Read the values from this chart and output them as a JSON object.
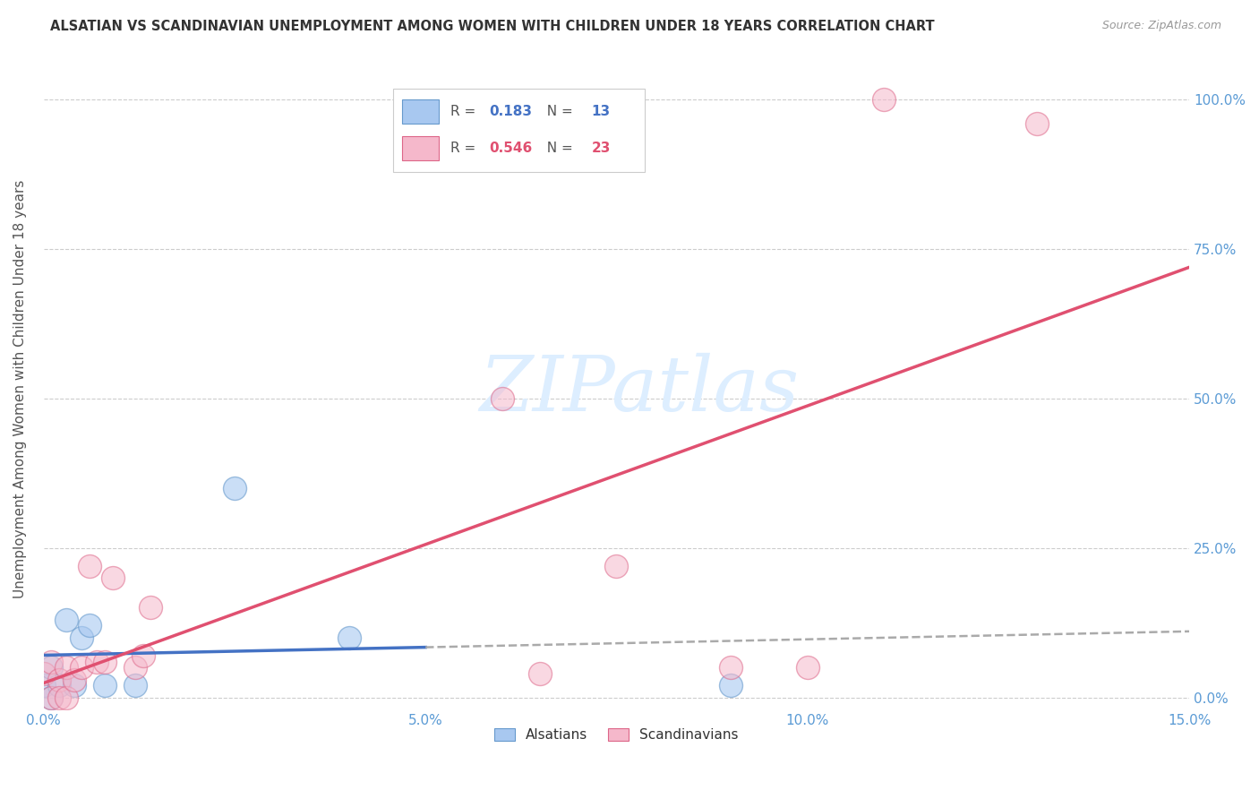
{
  "title": "ALSATIAN VS SCANDINAVIAN UNEMPLOYMENT AMONG WOMEN WITH CHILDREN UNDER 18 YEARS CORRELATION CHART",
  "source": "Source: ZipAtlas.com",
  "ylabel_label": "Unemployment Among Women with Children Under 18 years",
  "legend_labels": [
    "Alsatians",
    "Scandinavians"
  ],
  "alsatian_R": "0.183",
  "alsatian_N": "13",
  "scandinavian_R": "0.546",
  "scandinavian_N": "23",
  "xlim": [
    0.0,
    0.15
  ],
  "ylim": [
    -0.02,
    1.05
  ],
  "alsatian_color": "#a8c8f0",
  "scandinavian_color": "#f5b8cb",
  "alsatian_line_color": "#4472c4",
  "scandinavian_line_color": "#e05070",
  "alsatian_edge": "#6699cc",
  "scandinavian_edge": "#dd6688",
  "alsatian_x": [
    0.0,
    0.001,
    0.001,
    0.002,
    0.003,
    0.004,
    0.005,
    0.006,
    0.008,
    0.012,
    0.025,
    0.04,
    0.09
  ],
  "alsatian_y": [
    0.02,
    0.0,
    0.05,
    0.02,
    0.13,
    0.02,
    0.1,
    0.12,
    0.02,
    0.02,
    0.35,
    0.1,
    0.02
  ],
  "scandinavian_x": [
    0.0,
    0.001,
    0.001,
    0.002,
    0.002,
    0.003,
    0.003,
    0.004,
    0.005,
    0.006,
    0.007,
    0.008,
    0.009,
    0.012,
    0.013,
    0.014,
    0.06,
    0.065,
    0.075,
    0.09,
    0.1,
    0.11,
    0.13
  ],
  "scandinavian_y": [
    0.04,
    0.0,
    0.06,
    0.03,
    0.0,
    0.05,
    0.0,
    0.03,
    0.05,
    0.22,
    0.06,
    0.06,
    0.2,
    0.05,
    0.07,
    0.15,
    0.5,
    0.04,
    0.22,
    0.05,
    0.05,
    1.0,
    0.96
  ],
  "x_tick_vals": [
    0.0,
    0.05,
    0.1,
    0.15
  ],
  "x_tick_labels": [
    "0.0%",
    "5.0%",
    "10.0%",
    "15.0%"
  ],
  "y_tick_vals": [
    0.0,
    0.25,
    0.5,
    0.75,
    1.0
  ],
  "y_tick_labels": [
    "0.0%",
    "25.0%",
    "50.0%",
    "75.0%",
    "100.0%"
  ],
  "grid_color": "#cccccc",
  "bg_color": "#ffffff",
  "tick_color": "#5b9bd5",
  "title_color": "#333333",
  "source_color": "#999999",
  "watermark": "ZIPatlas",
  "watermark_color": "#ddeeff"
}
